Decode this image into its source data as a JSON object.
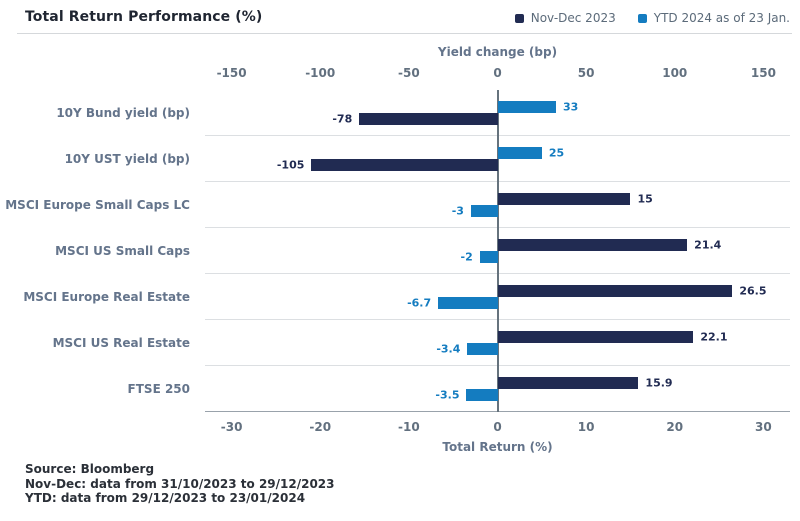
{
  "header": {
    "title": "Total Return Performance (%)"
  },
  "footer": {
    "lines": [
      "Source: Bloomberg",
      "Nov-Dec: data from 31/10/2023 to 29/12/2023",
      "YTD: data from 29/12/2023 to 23/01/2024"
    ]
  },
  "chart_data": {
    "type": "bar",
    "orientation": "horizontal",
    "title": "Total Return Performance (%)",
    "legend_position": "top-right",
    "categories": [
      "10Y Bund yield (bp)",
      "10Y UST yield (bp)",
      "MSCI Europe Small Caps LC",
      "MSCI US Small Caps",
      "MSCI Europe Real Estate",
      "MSCI US Real Estate",
      "FTSE 250"
    ],
    "series": [
      {
        "name": "Nov-Dec 2023",
        "color": "#212b52",
        "values": [
          -78,
          -105,
          15,
          21.4,
          26.5,
          22.1,
          15.9
        ]
      },
      {
        "name": "YTD 2024 as of 23 Jan.",
        "color": "#147cc0",
        "values": [
          33,
          25,
          -3,
          -2,
          -6.7,
          -3.4,
          -3.5
        ]
      }
    ],
    "row_axis": [
      "bp",
      "bp",
      "pct",
      "pct",
      "pct",
      "pct",
      "pct"
    ],
    "bar_order_top_to_bottom": [
      [
        1,
        0
      ],
      [
        1,
        0
      ],
      [
        0,
        1
      ],
      [
        0,
        1
      ],
      [
        0,
        1
      ],
      [
        0,
        1
      ],
      [
        0,
        1
      ]
    ],
    "axes": {
      "bp": {
        "label": "Yield change (bp)",
        "position": "top",
        "ticks": [
          -150,
          -100,
          -50,
          0,
          50,
          100,
          150
        ],
        "range": [
          -165,
          165
        ]
      },
      "pct": {
        "label": "Total Return (%)",
        "position": "bottom",
        "ticks": [
          -30,
          -20,
          -10,
          0,
          10,
          20,
          30
        ],
        "range": [
          -33,
          33
        ]
      }
    },
    "grid": "horizontal row separators only, vertical zero line"
  }
}
